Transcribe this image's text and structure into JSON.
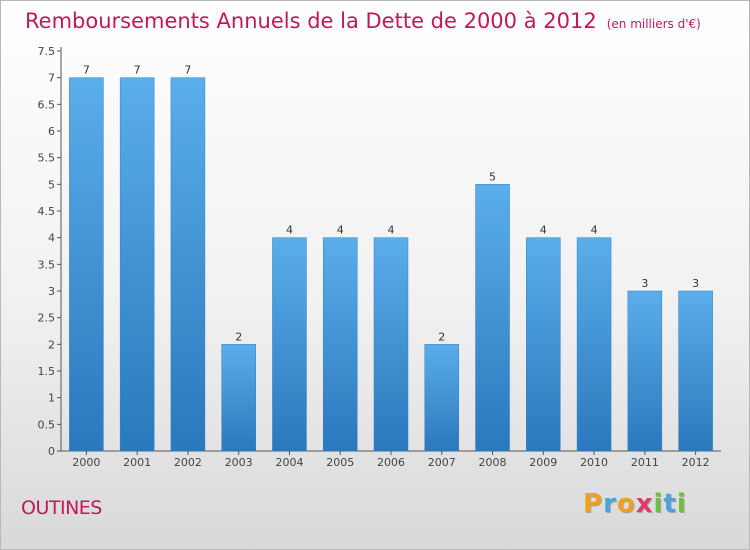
{
  "chart_data": {
    "type": "bar",
    "title": "Remboursements Annuels de la Dette de 2000 à 2012",
    "unit_note": "(en milliers d'€)",
    "categories": [
      "2000",
      "2001",
      "2002",
      "2003",
      "2004",
      "2005",
      "2006",
      "2007",
      "2008",
      "2009",
      "2010",
      "2011",
      "2012"
    ],
    "values": [
      7,
      7,
      7,
      2,
      4,
      4,
      4,
      2,
      5,
      4,
      4,
      3,
      3
    ],
    "data_labels": [
      "7",
      "7",
      "7",
      "2",
      "4",
      "4",
      "4",
      "2",
      "5",
      "4",
      "4",
      "3",
      "3"
    ],
    "yticks": [
      0,
      0.5,
      1,
      1.5,
      2,
      2.5,
      3,
      3.5,
      4,
      4.5,
      5,
      5.5,
      6,
      6.5,
      7,
      7.5
    ],
    "ytick_labels": [
      "0",
      "0.5",
      "1",
      "1.5",
      "2",
      "2.5",
      "3",
      "3.5",
      "4",
      "4.5",
      "5",
      "5.5",
      "6",
      "6.5",
      "7",
      "7.5"
    ],
    "ylim": [
      0,
      7.5
    ],
    "grid": false,
    "colors": {
      "bar_top": "#5aaeea",
      "bar_bottom": "#2a78bd",
      "axis": "#555555",
      "title": "#c2185b"
    }
  },
  "commune": "OUTINES",
  "logo": {
    "letters": [
      "P",
      "r",
      "o",
      "x",
      "i",
      "t",
      "i"
    ],
    "colors": [
      "#f0a020",
      "#4aa3df",
      "#f0a020",
      "#e23b6a",
      "#6cbf3a",
      "#4aa3df",
      "#6cbf3a"
    ]
  }
}
